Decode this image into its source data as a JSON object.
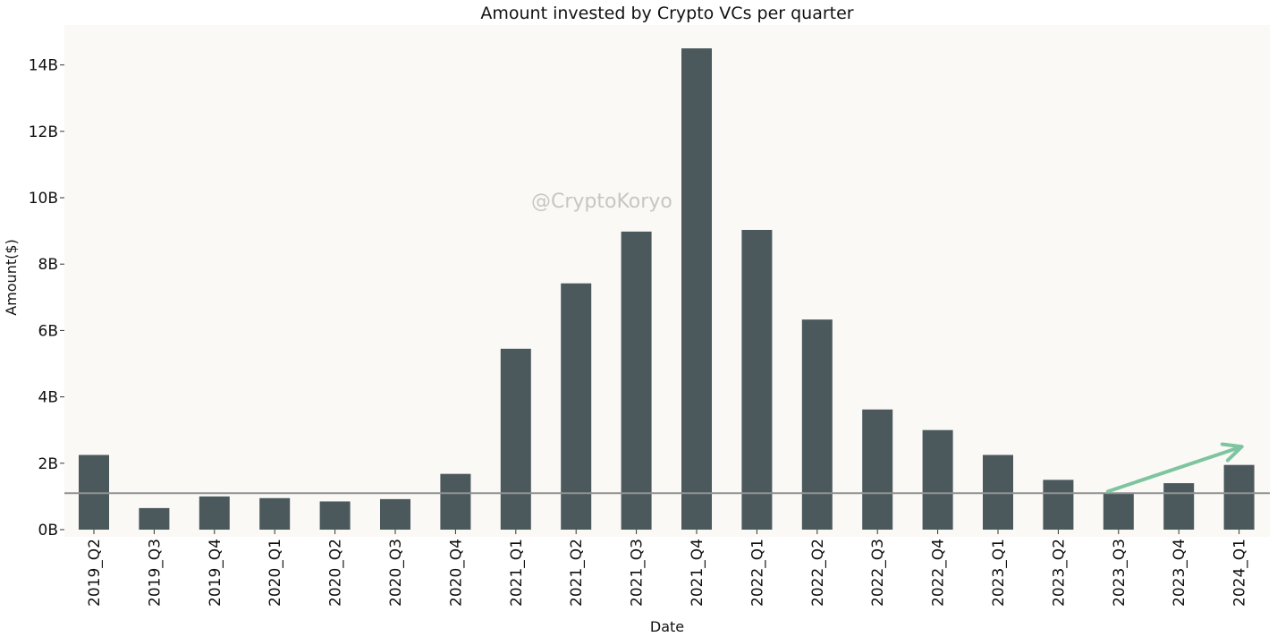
{
  "chart_data": {
    "type": "bar",
    "title": "Amount invested by Crypto VCs per quarter",
    "xlabel": "Date",
    "ylabel": "Amount($)",
    "categories": [
      "2019_Q2",
      "2019_Q3",
      "2019_Q4",
      "2020_Q1",
      "2020_Q2",
      "2020_Q3",
      "2020_Q4",
      "2021_Q1",
      "2021_Q2",
      "2021_Q3",
      "2021_Q4",
      "2022_Q1",
      "2022_Q2",
      "2022_Q3",
      "2022_Q4",
      "2023_Q1",
      "2023_Q2",
      "2023_Q3",
      "2023_Q4",
      "2024_Q1"
    ],
    "values": [
      2.25,
      0.65,
      1.0,
      0.95,
      0.85,
      0.92,
      1.68,
      5.45,
      7.42,
      8.98,
      14.5,
      9.03,
      6.33,
      3.62,
      3.0,
      2.25,
      1.5,
      1.1,
      1.4,
      1.95
    ],
    "unit": "B",
    "ylim": [
      0,
      15.2
    ],
    "yticks": [
      0,
      2,
      4,
      6,
      8,
      10,
      12,
      14
    ],
    "ytick_labels": [
      "0B",
      "2B",
      "4B",
      "6B",
      "8B",
      "10B",
      "12B",
      "14B"
    ],
    "reference_line": {
      "value": 1.1,
      "color": "#8f9291"
    },
    "trend_arrow": {
      "from": [
        "2023_Q3",
        1.15
      ],
      "to": [
        "2024_Q1",
        2.5
      ],
      "color": "#7fc4a0"
    },
    "watermark": "@CryptoKoryo",
    "colors": {
      "bar": "#4b595d",
      "plot_background": "#faf9f6",
      "text": "#111111"
    },
    "grid": false,
    "legend": "none"
  }
}
